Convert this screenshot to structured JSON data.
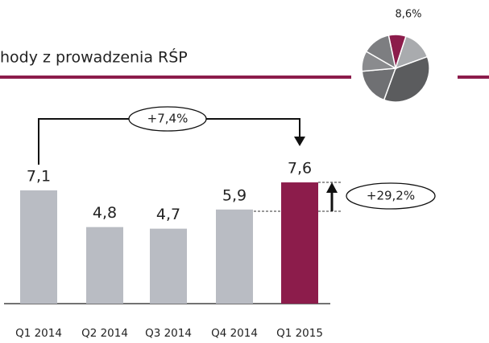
{
  "chart_data": {
    "type": "bar",
    "title": "hody z prowadzenia RŚP",
    "categories": [
      "Q1 2014",
      "Q2 2014",
      "Q3 2014",
      "Q4 2014",
      "Q1 2015"
    ],
    "values": [
      7.1,
      4.8,
      4.7,
      5.9,
      7.6
    ],
    "value_labels": [
      "7,1",
      "4,8",
      "4,7",
      "5,9",
      "7,6"
    ],
    "colors": [
      "#b9bcc3",
      "#b9bcc3",
      "#b9bcc3",
      "#b9bcc3",
      "#8c1c4b"
    ],
    "annotations": [
      "+7,4%",
      "+29,2%"
    ],
    "pie_label": "8,6%"
  }
}
